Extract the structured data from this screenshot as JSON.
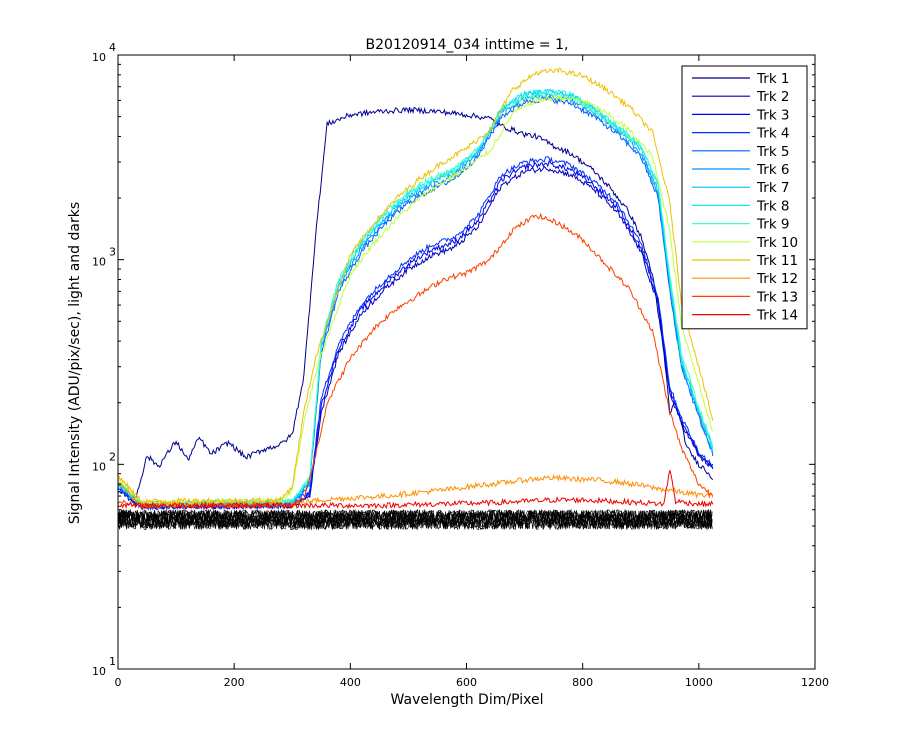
{
  "figure": {
    "title": "B20120914_034 inttime = 1,",
    "xlabel": "Wavelength Dim/Pixel",
    "ylabel": "Signal Intensity (ADU/pix/sec), light and darks"
  },
  "chart_data": {
    "type": "line",
    "title": "B20120914_034 inttime = 1,",
    "xlabel": "Wavelength Dim/Pixel",
    "ylabel": "Signal Intensity (ADU/pix/sec), light and darks",
    "xlim": [
      0,
      1200
    ],
    "ylim": [
      10,
      10000
    ],
    "yscale": "log",
    "grid": false,
    "legend_position": "top-right",
    "x_ticks": [
      0,
      200,
      400,
      600,
      800,
      1000,
      1200
    ],
    "y_ticks": [
      {
        "value": 10,
        "base": "10",
        "exp": "1"
      },
      {
        "value": 100,
        "base": "10",
        "exp": "2"
      },
      {
        "value": 1000,
        "base": "10",
        "exp": "3"
      },
      {
        "value": 10000,
        "base": "10",
        "exp": "4"
      }
    ],
    "series": [
      {
        "name": "Trk 1",
        "color": "#00008f",
        "x": [
          0,
          10,
          30,
          50,
          70,
          100,
          120,
          140,
          160,
          190,
          220,
          250,
          280,
          300,
          320,
          340,
          360,
          400,
          450,
          500,
          550,
          600,
          640,
          660,
          680,
          700,
          720,
          750,
          780,
          800,
          820,
          850,
          880,
          900,
          920,
          940,
          950,
          960,
          980,
          1000,
          1010,
          1025
        ],
        "y": [
          80,
          75,
          68,
          110,
          98,
          130,
          105,
          135,
          112,
          128,
          108,
          118,
          125,
          140,
          270,
          1300,
          4600,
          5100,
          5300,
          5400,
          5300,
          5100,
          4900,
          4500,
          4300,
          4100,
          4000,
          3600,
          3300,
          3000,
          2700,
          2200,
          1700,
          1300,
          850,
          350,
          180,
          200,
          120,
          100,
          95,
          85
        ]
      },
      {
        "name": "Trk 2",
        "color": "#0000bf",
        "x": [
          0,
          20,
          40,
          300,
          330,
          350,
          380,
          420,
          460,
          500,
          540,
          580,
          620,
          660,
          700,
          740,
          780,
          820,
          860,
          900,
          930,
          950,
          970,
          1000,
          1025
        ],
        "y": [
          75,
          68,
          62,
          63,
          70,
          180,
          350,
          550,
          720,
          900,
          1050,
          1150,
          1450,
          2300,
          2700,
          2800,
          2600,
          2200,
          1700,
          1100,
          600,
          220,
          160,
          110,
          95
        ]
      },
      {
        "name": "Trk 3",
        "color": "#0000ef",
        "x": [
          0,
          20,
          40,
          300,
          330,
          350,
          380,
          420,
          460,
          500,
          540,
          580,
          620,
          660,
          700,
          740,
          780,
          820,
          860,
          900,
          930,
          950,
          970,
          1000,
          1025
        ],
        "y": [
          76,
          69,
          62,
          63,
          72,
          195,
          370,
          580,
          760,
          950,
          1120,
          1220,
          1550,
          2450,
          2850,
          2950,
          2750,
          2300,
          1800,
          1150,
          630,
          230,
          165,
          112,
          96
        ]
      },
      {
        "name": "Trk 4",
        "color": "#0030ff",
        "x": [
          0,
          20,
          40,
          300,
          330,
          350,
          380,
          420,
          460,
          500,
          540,
          580,
          620,
          660,
          700,
          740,
          780,
          820,
          860,
          900,
          930,
          950,
          970,
          1000,
          1025
        ],
        "y": [
          77,
          70,
          62,
          63,
          74,
          210,
          390,
          610,
          800,
          1000,
          1180,
          1290,
          1650,
          2600,
          3000,
          3100,
          2900,
          2400,
          1900,
          1200,
          660,
          240,
          170,
          115,
          98
        ]
      },
      {
        "name": "Trk 5",
        "color": "#0060ff",
        "x": [
          0,
          20,
          40,
          300,
          330,
          350,
          380,
          420,
          460,
          500,
          540,
          580,
          620,
          660,
          700,
          740,
          780,
          820,
          860,
          900,
          930,
          950,
          970,
          1000,
          1025
        ],
        "y": [
          78,
          70,
          63,
          64,
          80,
          350,
          700,
          1100,
          1500,
          1900,
          2200,
          2500,
          3200,
          5000,
          5900,
          6100,
          5800,
          5000,
          4100,
          3200,
          2000,
          700,
          300,
          170,
          110
        ]
      },
      {
        "name": "Trk 6",
        "color": "#0090ff",
        "x": [
          0,
          20,
          40,
          300,
          330,
          350,
          380,
          420,
          460,
          500,
          540,
          580,
          620,
          660,
          700,
          740,
          780,
          820,
          860,
          900,
          930,
          950,
          970,
          1000,
          1025
        ],
        "y": [
          79,
          71,
          63,
          64,
          82,
          370,
          730,
          1150,
          1550,
          1980,
          2300,
          2600,
          3300,
          5200,
          6100,
          6300,
          6000,
          5200,
          4250,
          3350,
          2100,
          740,
          310,
          175,
          112
        ]
      },
      {
        "name": "Trk 7",
        "color": "#00c0ff",
        "x": [
          0,
          20,
          40,
          300,
          330,
          350,
          380,
          420,
          460,
          500,
          540,
          580,
          620,
          660,
          700,
          740,
          780,
          820,
          860,
          900,
          930,
          950,
          970,
          1000,
          1025
        ],
        "y": [
          80,
          72,
          64,
          65,
          84,
          380,
          760,
          1200,
          1600,
          2050,
          2400,
          2700,
          3400,
          5400,
          6400,
          6600,
          6300,
          5400,
          4400,
          3500,
          2200,
          780,
          320,
          180,
          115
        ]
      },
      {
        "name": "Trk 8",
        "color": "#10f0ef",
        "x": [
          0,
          20,
          40,
          300,
          330,
          350,
          380,
          420,
          460,
          500,
          540,
          580,
          620,
          660,
          700,
          740,
          780,
          820,
          860,
          900,
          930,
          950,
          970,
          1000,
          1025
        ],
        "y": [
          80,
          72,
          64,
          66,
          85,
          390,
          780,
          1230,
          1650,
          2100,
          2450,
          2750,
          3450,
          5500,
          6500,
          6700,
          6400,
          5500,
          4500,
          3600,
          2300,
          800,
          330,
          185,
          118
        ]
      },
      {
        "name": "Trk 9",
        "color": "#40ffbf",
        "x": [
          0,
          20,
          40,
          300,
          330,
          350,
          380,
          420,
          460,
          500,
          540,
          580,
          620,
          660,
          700,
          740,
          780,
          820,
          860,
          900,
          930,
          950,
          970,
          1000,
          1025
        ],
        "y": [
          81,
          73,
          64,
          66,
          86,
          400,
          800,
          1260,
          1700,
          2150,
          2500,
          2800,
          3500,
          5300,
          6200,
          6400,
          6150,
          5300,
          4400,
          3550,
          2350,
          850,
          350,
          190,
          120
        ]
      },
      {
        "name": "Trk 10",
        "color": "#bfff40",
        "x": [
          0,
          20,
          40,
          280,
          300,
          320,
          340,
          370,
          400,
          440,
          480,
          520,
          560,
          600,
          640,
          680,
          720,
          760,
          800,
          840,
          880,
          920,
          950,
          970,
          1000,
          1025
        ],
        "y": [
          85,
          75,
          65,
          66,
          75,
          160,
          280,
          500,
          850,
          1200,
          1600,
          2000,
          2400,
          2800,
          3400,
          5200,
          6000,
          6200,
          6000,
          5200,
          4300,
          3200,
          1400,
          480,
          250,
          140
        ]
      },
      {
        "name": "Trk 11",
        "color": "#efc000",
        "x": [
          0,
          20,
          40,
          280,
          300,
          320,
          340,
          370,
          400,
          440,
          480,
          520,
          560,
          600,
          640,
          680,
          720,
          760,
          800,
          840,
          880,
          920,
          950,
          970,
          1000,
          1025
        ],
        "y": [
          88,
          76,
          66,
          67,
          78,
          180,
          330,
          600,
          1050,
          1500,
          2000,
          2500,
          3000,
          3500,
          4300,
          6800,
          8200,
          8400,
          7900,
          6800,
          5600,
          4200,
          1900,
          620,
          300,
          160
        ]
      },
      {
        "name": "Trk 12",
        "color": "#ff8f00",
        "x": [
          0,
          20,
          40,
          300,
          330,
          350,
          380,
          420,
          460,
          500,
          540,
          580,
          620,
          660,
          700,
          740,
          780,
          820,
          860,
          900,
          930,
          950,
          970,
          1000,
          1025
        ],
        "y": [
          82,
          72,
          63,
          64,
          66,
          67,
          68,
          69,
          70,
          72,
          74,
          76,
          79,
          81,
          84,
          86,
          85,
          84,
          82,
          79,
          76,
          75,
          73,
          71,
          70
        ]
      },
      {
        "name": "Trk 13",
        "color": "#ff3f00",
        "x": [
          0,
          20,
          40,
          300,
          320,
          340,
          360,
          400,
          440,
          480,
          520,
          560,
          600,
          640,
          680,
          720,
          760,
          800,
          840,
          880,
          920,
          950,
          970,
          1000,
          1025
        ],
        "y": [
          66,
          64,
          63,
          63,
          68,
          110,
          200,
          330,
          460,
          580,
          680,
          800,
          860,
          1000,
          1400,
          1650,
          1500,
          1250,
          950,
          720,
          450,
          180,
          120,
          80,
          70
        ]
      },
      {
        "name": "Trk 14",
        "color": "#ef0000",
        "x": [
          0,
          20,
          40,
          300,
          350,
          400,
          450,
          500,
          550,
          600,
          650,
          700,
          750,
          800,
          850,
          900,
          940,
          950,
          960,
          980,
          1000,
          1025
        ],
        "y": [
          64,
          63,
          63,
          63,
          63,
          63,
          63,
          63.5,
          64,
          64.5,
          65,
          66,
          67,
          67,
          66,
          65,
          64,
          95,
          66,
          65,
          64,
          64
        ]
      }
    ],
    "dark_frames": {
      "color": "#000000",
      "y_range": [
        48,
        60
      ],
      "x_range": [
        0,
        1025
      ]
    }
  }
}
